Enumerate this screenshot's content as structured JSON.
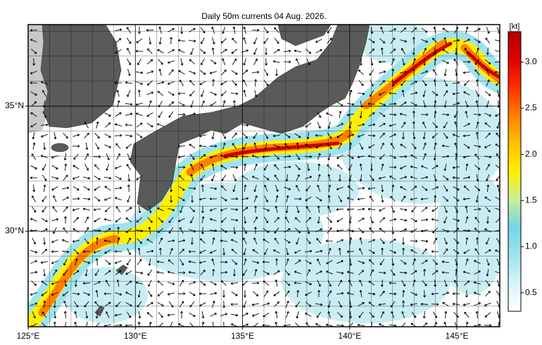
{
  "title": "Daily 50m currents 04 Aug. 2026.",
  "map": {
    "xlim": [
      125,
      147
    ],
    "ylim": [
      26.18,
      38.26
    ],
    "grid_step": 1,
    "xticks": [
      {
        "value": 125,
        "label": "125°E"
      },
      {
        "value": 130,
        "label": "130°E"
      },
      {
        "value": 135,
        "label": "135°E"
      },
      {
        "value": 140,
        "label": "140°E"
      },
      {
        "value": 145,
        "label": "145°E"
      }
    ],
    "yticks": [
      {
        "value": 30,
        "label": "30°N"
      },
      {
        "value": 35,
        "label": "35°N"
      }
    ]
  },
  "colorbar": {
    "label": "[kt]",
    "lim": [
      0.3,
      3.33
    ],
    "colors": [
      "#ffffff",
      "#d8f3f8",
      "#9fe3ef",
      "#74d6e6",
      "#c9ee9a",
      "#fff000",
      "#ffc000",
      "#ff8000",
      "#ff3000",
      "#e00000",
      "#b00000"
    ],
    "ticks": [
      {
        "value": 0.5,
        "label": "0.5"
      },
      {
        "value": 1.0,
        "label": "1.0"
      },
      {
        "value": 1.5,
        "label": "1.5"
      },
      {
        "value": 2.0,
        "label": "2.0"
      },
      {
        "value": 2.5,
        "label": "2.5"
      },
      {
        "value": 3.0,
        "label": "3.0"
      }
    ]
  }
}
